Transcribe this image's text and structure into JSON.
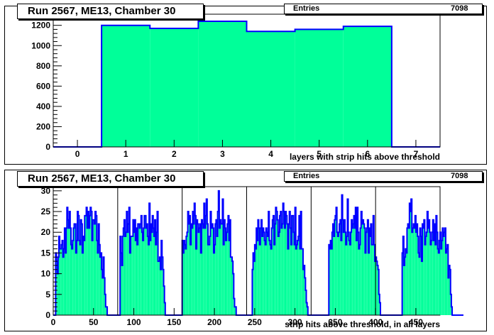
{
  "colors": {
    "fill": "#00ff99",
    "line": "#0000ff",
    "axis": "#000000"
  },
  "panels": [
    {
      "title": "Run 2567, ME13, Chamber 30",
      "stats_label": "Entries",
      "stats_value": "7098"
    },
    {
      "title": "Run 2567, ME13, Chamber 30",
      "stats_label": "Entries",
      "stats_value": "7098"
    }
  ],
  "chart_data": [
    {
      "type": "bar",
      "xlabel": "layers with strip hits above threshold",
      "ylabel": "",
      "xlim": [
        -0.5,
        7.5
      ],
      "ylim": [
        0,
        1310
      ],
      "xticks": [
        0,
        1,
        2,
        3,
        4,
        5,
        6,
        7
      ],
      "yticks": [
        0,
        200,
        400,
        600,
        800,
        1000,
        1200
      ],
      "categories": [
        0,
        1,
        2,
        3,
        4,
        5,
        6,
        7
      ],
      "values": [
        0,
        1200,
        1170,
        1240,
        1140,
        1160,
        1190,
        0
      ]
    },
    {
      "type": "bar",
      "xlabel": "strip hits above threshold, in all layers",
      "ylabel": "",
      "xlim": [
        0,
        480
      ],
      "ylim": [
        0,
        31
      ],
      "xticks": [
        0,
        50,
        100,
        150,
        200,
        250,
        300,
        350,
        400,
        450
      ],
      "yticks": [
        0,
        5,
        10,
        15,
        20,
        25,
        30
      ],
      "separators": [
        80,
        160,
        240,
        320,
        400
      ],
      "bin_width": 1,
      "values": [
        0,
        0,
        0,
        15,
        13,
        10,
        14,
        19,
        16,
        16,
        17,
        18,
        14,
        16,
        21,
        15,
        21,
        26,
        23,
        21,
        25,
        21,
        17,
        16,
        18,
        21,
        22,
        22,
        15,
        18,
        25,
        24,
        18,
        17,
        23,
        22,
        15,
        19,
        18,
        24,
        24,
        26,
        21,
        25,
        21,
        24,
        26,
        25,
        18,
        23,
        23,
        22,
        25,
        24,
        18,
        15,
        22,
        17,
        14,
        15,
        11,
        9,
        14,
        9,
        5,
        2,
        2,
        0,
        0,
        0,
        0,
        0,
        0,
        0,
        0,
        0,
        0,
        0,
        0,
        0,
        0,
        0,
        0,
        19,
        15,
        12,
        19,
        21,
        23,
        19,
        20,
        25,
        20,
        22,
        26,
        15,
        19,
        19,
        19,
        23,
        20,
        23,
        18,
        21,
        17,
        22,
        22,
        21,
        22,
        24,
        20,
        18,
        21,
        24,
        24,
        21,
        22,
        19,
        17,
        27,
        18,
        22,
        20,
        24,
        21,
        19,
        23,
        17,
        20,
        25,
        13,
        13,
        14,
        11,
        18,
        14,
        11,
        7,
        3,
        0,
        0,
        0,
        0,
        0,
        0,
        0,
        0,
        0,
        0,
        0,
        0,
        0,
        0,
        0,
        0,
        0,
        0,
        0,
        0,
        0,
        18,
        15,
        18,
        17,
        16,
        19,
        20,
        25,
        22,
        24,
        17,
        22,
        21,
        25,
        22,
        27,
        24,
        16,
        23,
        22,
        20,
        21,
        22,
        15,
        23,
        22,
        21,
        27,
        21,
        24,
        28,
        22,
        17,
        17,
        19,
        25,
        21,
        22,
        21,
        15,
        17,
        22,
        23,
        19,
        25,
        30,
        21,
        23,
        22,
        22,
        28,
        17,
        23,
        21,
        18,
        20,
        22,
        24,
        18,
        23,
        14,
        14,
        13,
        10,
        4,
        2,
        2,
        0,
        0,
        0,
        0,
        0,
        0,
        0,
        0,
        0,
        0,
        0,
        0,
        0,
        0,
        0,
        0,
        0,
        0,
        0,
        0,
        11,
        15,
        13,
        17,
        16,
        21,
        18,
        23,
        21,
        17,
        21,
        23,
        19,
        21,
        20,
        18,
        17,
        21,
        20,
        19,
        25,
        18,
        17,
        16,
        21,
        23,
        24,
        17,
        22,
        26,
        25,
        23,
        19,
        20,
        24,
        25,
        21,
        22,
        27,
        25,
        21,
        25,
        24,
        22,
        16,
        22,
        25,
        21,
        17,
        24,
        24,
        20,
        17,
        26,
        16,
        17,
        18,
        19,
        24,
        16,
        25,
        16,
        16,
        11,
        12,
        9,
        6,
        3,
        2,
        0,
        0,
        0,
        0,
        0,
        0,
        0,
        0,
        0,
        0,
        0,
        0,
        0,
        0,
        0,
        0,
        0,
        0,
        0,
        0,
        0,
        0,
        0,
        0,
        0,
        0,
        17,
        16,
        18,
        16,
        20,
        22,
        19,
        23,
        24,
        26,
        20,
        19,
        20,
        22,
        23,
        18,
        29,
        23,
        20,
        23,
        20,
        17,
        19,
        28,
        20,
        18,
        17,
        20,
        23,
        21,
        22,
        24,
        21,
        26,
        18,
        26,
        20,
        16,
        17,
        21,
        25,
        22,
        23,
        22,
        21,
        15,
        20,
        21,
        23,
        15,
        21,
        19,
        22,
        17,
        17,
        24,
        17,
        13,
        14,
        13,
        12,
        11,
        5,
        3,
        0,
        0,
        0,
        0,
        0,
        0,
        0,
        0,
        0,
        0,
        0,
        0,
        0,
        0,
        0,
        0,
        0,
        0,
        0,
        0,
        0,
        0,
        0,
        0,
        0,
        0,
        0,
        15,
        19,
        12,
        14,
        16,
        15,
        21,
        22,
        21,
        27,
        25,
        28,
        20,
        21,
        22,
        21,
        24,
        20,
        22,
        19,
        15,
        14,
        21,
        19,
        13,
        22,
        21,
        23,
        17,
        19,
        20,
        25,
        21,
        23,
        20,
        17,
        18,
        20,
        23,
        18,
        22,
        17,
        24,
        20,
        16,
        15,
        18,
        20,
        16,
        18,
        21,
        19,
        20,
        21,
        15,
        16,
        17,
        9,
        12,
        11,
        5,
        2,
        0,
        0,
        0,
        0,
        0,
        0,
        0,
        0,
        0,
        0,
        0,
        0,
        0,
        0
      ]
    }
  ]
}
